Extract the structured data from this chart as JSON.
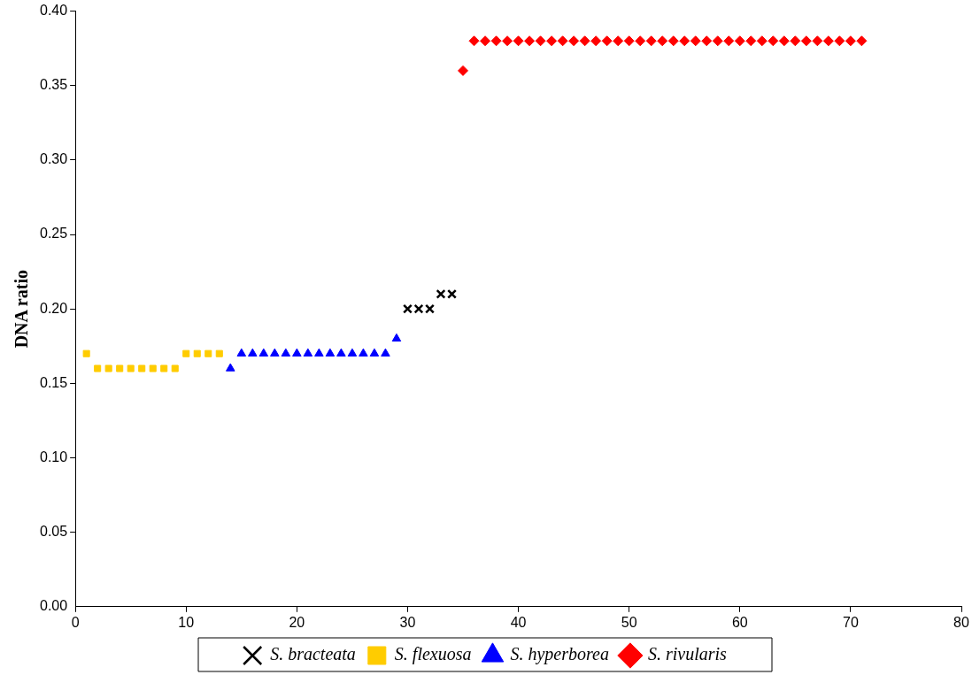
{
  "chart_data": {
    "type": "scatter",
    "ylabel": "DNA ratio",
    "xlim": [
      0,
      80
    ],
    "xticks": [
      0,
      10,
      20,
      30,
      40,
      50,
      60,
      70,
      80
    ],
    "ylim": [
      0,
      0.4
    ],
    "yticks": [
      {
        "value": 0,
        "label": "0.00"
      },
      {
        "value": 0.05,
        "label": "0.05"
      },
      {
        "value": 0.1,
        "label": "0.10"
      },
      {
        "value": 0.15,
        "label": "0.15"
      },
      {
        "value": 0.2,
        "label": "0.20"
      },
      {
        "value": 0.25,
        "label": "0.25"
      },
      {
        "value": 0.3,
        "label": "0.30"
      },
      {
        "value": 0.35,
        "label": "0.35"
      },
      {
        "value": 0.4,
        "label": "0.40"
      }
    ],
    "grid": false,
    "legend": "bottom",
    "series": [
      {
        "name": "S. bracteata",
        "color": "#000000",
        "marker": "cross",
        "x": [
          30,
          31,
          32,
          33,
          34
        ],
        "values": [
          0.2,
          0.2,
          0.2,
          0.21,
          0.21
        ]
      },
      {
        "name": "S. flexuosa",
        "color": "#ffcc00",
        "marker": "square",
        "x": [
          1,
          2,
          3,
          4,
          5,
          6,
          7,
          8,
          9,
          10,
          11,
          12,
          13
        ],
        "values": [
          0.17,
          0.16,
          0.16,
          0.16,
          0.16,
          0.16,
          0.16,
          0.16,
          0.16,
          0.17,
          0.17,
          0.17,
          0.17
        ]
      },
      {
        "name": "S. hyperborea",
        "color": "#0000ff",
        "marker": "triangle",
        "x": [
          14,
          15,
          16,
          17,
          18,
          19,
          20,
          21,
          22,
          23,
          24,
          25,
          26,
          27,
          28,
          29
        ],
        "values": [
          0.16,
          0.17,
          0.17,
          0.17,
          0.17,
          0.17,
          0.17,
          0.17,
          0.17,
          0.17,
          0.17,
          0.17,
          0.17,
          0.17,
          0.17,
          0.18
        ]
      },
      {
        "name": "S. rivularis",
        "color": "#ff0000",
        "marker": "diamond",
        "x": [
          35,
          36,
          37,
          38,
          39,
          40,
          41,
          42,
          43,
          44,
          45,
          46,
          47,
          48,
          49,
          50,
          51,
          52,
          53,
          54,
          55,
          56,
          57,
          58,
          59,
          60,
          61,
          62,
          63,
          64,
          65,
          66,
          67,
          68,
          69,
          70,
          71
        ],
        "values": [
          0.36,
          0.38,
          0.38,
          0.38,
          0.38,
          0.38,
          0.38,
          0.38,
          0.38,
          0.38,
          0.38,
          0.38,
          0.38,
          0.38,
          0.38,
          0.38,
          0.38,
          0.38,
          0.38,
          0.38,
          0.38,
          0.38,
          0.38,
          0.38,
          0.38,
          0.38,
          0.38,
          0.38,
          0.38,
          0.38,
          0.38,
          0.38,
          0.38,
          0.38,
          0.38,
          0.38,
          0.38
        ]
      }
    ]
  }
}
